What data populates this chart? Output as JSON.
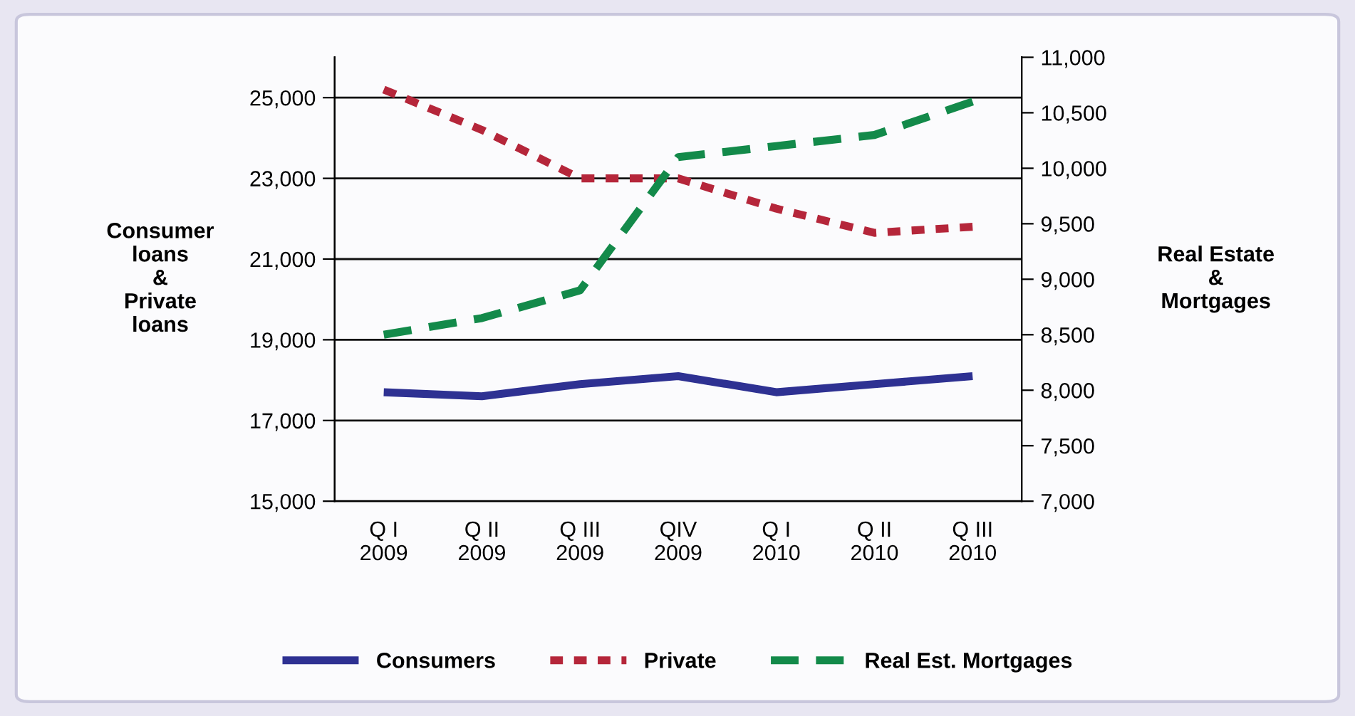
{
  "chart_data": {
    "type": "line",
    "categories": [
      "Q I\n2009",
      "Q II\n2009",
      "Q III\n2009",
      "QIV\n2009",
      "Q I\n2010",
      "Q II\n2010",
      "Q III\n2010"
    ],
    "ylabel": "Consumer\nloans\n&\nPrivate\nloans",
    "y2label": "Real Estate\n&\nMortgages",
    "series": [
      {
        "name": "Consumers",
        "color": "#2e3192",
        "line_style": "solid",
        "values": [
          17700,
          17600,
          17900,
          18100,
          17700,
          17900,
          18100
        ]
      },
      {
        "name": "Private",
        "color": "#b5263a",
        "line_style": "dotted",
        "values": [
          25200,
          24200,
          23000,
          23000,
          22250,
          21650,
          21800
        ]
      },
      {
        "name": "Real Est. Mortgages",
        "color": "#138a4a",
        "line_style": "dashed",
        "axis": "y2",
        "values": [
          8500,
          8650,
          8900,
          10100,
          10200,
          10300,
          10600
        ]
      }
    ],
    "ylim": [
      15000,
      26000
    ],
    "yticks": [
      {
        "value": 15000,
        "label": "15,000"
      },
      {
        "value": 17000,
        "label": "17,000"
      },
      {
        "value": 19000,
        "label": "19,000"
      },
      {
        "value": 21000,
        "label": "21,000"
      },
      {
        "value": 23000,
        "label": "23,000"
      },
      {
        "value": 25000,
        "label": "25,000"
      }
    ],
    "y2lim": [
      7000,
      11000
    ],
    "y2ticks": [
      {
        "value": 7000,
        "label": "7,000"
      },
      {
        "value": 7500,
        "label": "7,500"
      },
      {
        "value": 8000,
        "label": "8,000"
      },
      {
        "value": 8500,
        "label": "8,500"
      },
      {
        "value": 9000,
        "label": "9,000"
      },
      {
        "value": 9500,
        "label": "9,500"
      },
      {
        "value": 10000,
        "label": "10,000"
      },
      {
        "value": 10500,
        "label": "10,500"
      },
      {
        "value": 11000,
        "label": "11,000"
      }
    ],
    "grid": "y",
    "legend": "bottom",
    "marker": "none"
  }
}
